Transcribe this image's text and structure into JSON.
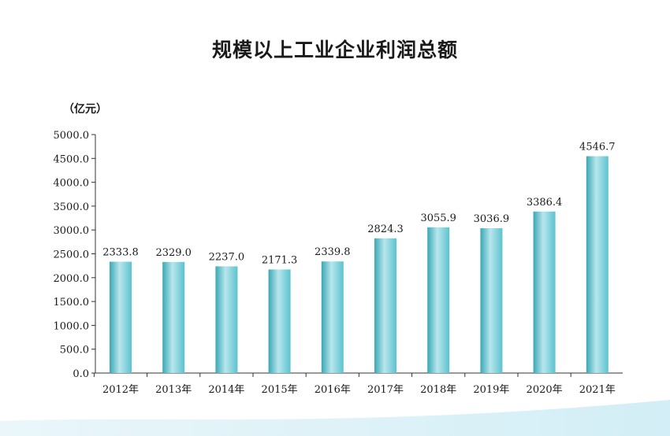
{
  "chart_data": {
    "type": "bar",
    "title": "规模以上工业企业利润总额",
    "unit_label": "（亿元）",
    "categories": [
      "2012年",
      "2013年",
      "2014年",
      "2015年",
      "2016年",
      "2017年",
      "2018年",
      "2019年",
      "2020年",
      "2021年"
    ],
    "values": [
      2333.8,
      2329.0,
      2237.0,
      2171.3,
      2339.8,
      2824.3,
      3055.9,
      3036.9,
      3386.4,
      4546.7
    ],
    "value_labels": [
      "2333.8",
      "2329.0",
      "2237.0",
      "2171.3",
      "2339.8",
      "2824.3",
      "3055.9",
      "3036.9",
      "3386.4",
      "4546.7"
    ],
    "ylim": [
      0,
      5000
    ],
    "yticks": [
      "0.0",
      "500.0",
      "1000.0",
      "1500.0",
      "2000.0",
      "2500.0",
      "3000.0",
      "3500.0",
      "4000.0",
      "4500.0",
      "5000.0"
    ],
    "ytick_values": [
      0,
      500,
      1000,
      1500,
      2000,
      2500,
      3000,
      3500,
      4000,
      4500,
      5000
    ],
    "grid": false,
    "bar_color": "#5cc3cf",
    "bar_color_light": "#b8e6ec",
    "bar_color_dark": "#3aa8b6"
  }
}
